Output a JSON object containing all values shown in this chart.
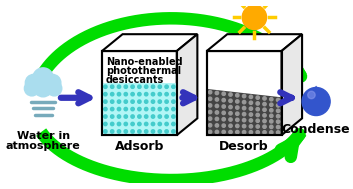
{
  "bg_color": "#ffffff",
  "green_color": "#00dd00",
  "blue_arrow_color": "#3333bb",
  "box1_label": "Adsorb",
  "box2_label": "Desorb",
  "left_label_line1": "Water in",
  "left_label_line2": "atmosphere",
  "right_label": "Condense",
  "box1_text_line1": "Nano-enabled",
  "box1_text_line2": "photothermal",
  "box1_text_line3": "desiccants",
  "box1_fill_color": "#aaf5f5",
  "box1_dot_color": "#44cccc",
  "box2_dark_color": "#444444",
  "box2_dot_color": "#999999",
  "sun_body_color": "#ffaa00",
  "sun_ray_color": "#ffcc00",
  "drop_color": "#3355cc",
  "cloud_body_color": "#aaddee",
  "cloud_line_color": "#77aabb",
  "figw": 3.53,
  "figh": 1.89,
  "dpi": 100
}
